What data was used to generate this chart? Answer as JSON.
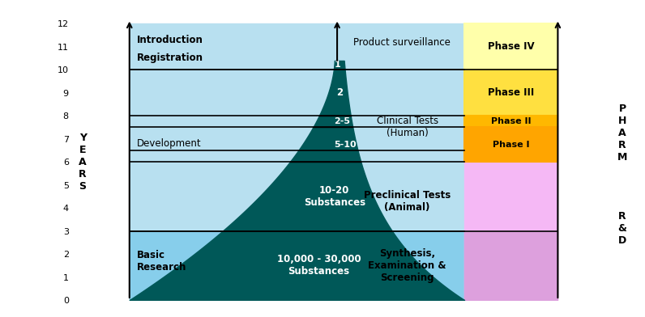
{
  "ylim": [
    0,
    12
  ],
  "xlim": [
    0,
    10
  ],
  "color_blue_top": "#B8E0F0",
  "color_blue_bottom": "#87CEEB",
  "color_pink_top": "#F5B8F5",
  "color_pink_bottom": "#DDA0DD",
  "color_teal": "#005858",
  "color_yellow_iv": "#FFFFAA",
  "color_yellow_iii": "#FFE040",
  "color_orange_ii": "#FFB800",
  "color_orange_i": "#FFA500",
  "horizontal_lines": [
    3.0,
    6.0,
    6.5,
    7.5,
    8.0,
    10.0
  ],
  "labels": {
    "introduction": "Introduction",
    "registration": "Registration",
    "development": "Development",
    "basic_research": "Basic\nResearch",
    "product_surveillance": "Product surveillance",
    "clinical_tests": "Clinical Tests\n(Human)",
    "preclinical_tests": "Preclinical Tests\n(Animal)",
    "synthesis": "Synthesis,\nExamination &\nScreening",
    "phase_iv": "Phase IV",
    "phase_iii": "Phase III",
    "phase_ii": "Phase II",
    "phase_i": "Phase I",
    "s1": "1",
    "s2": "2",
    "s25": "2-5",
    "s510": "5-10"
  }
}
